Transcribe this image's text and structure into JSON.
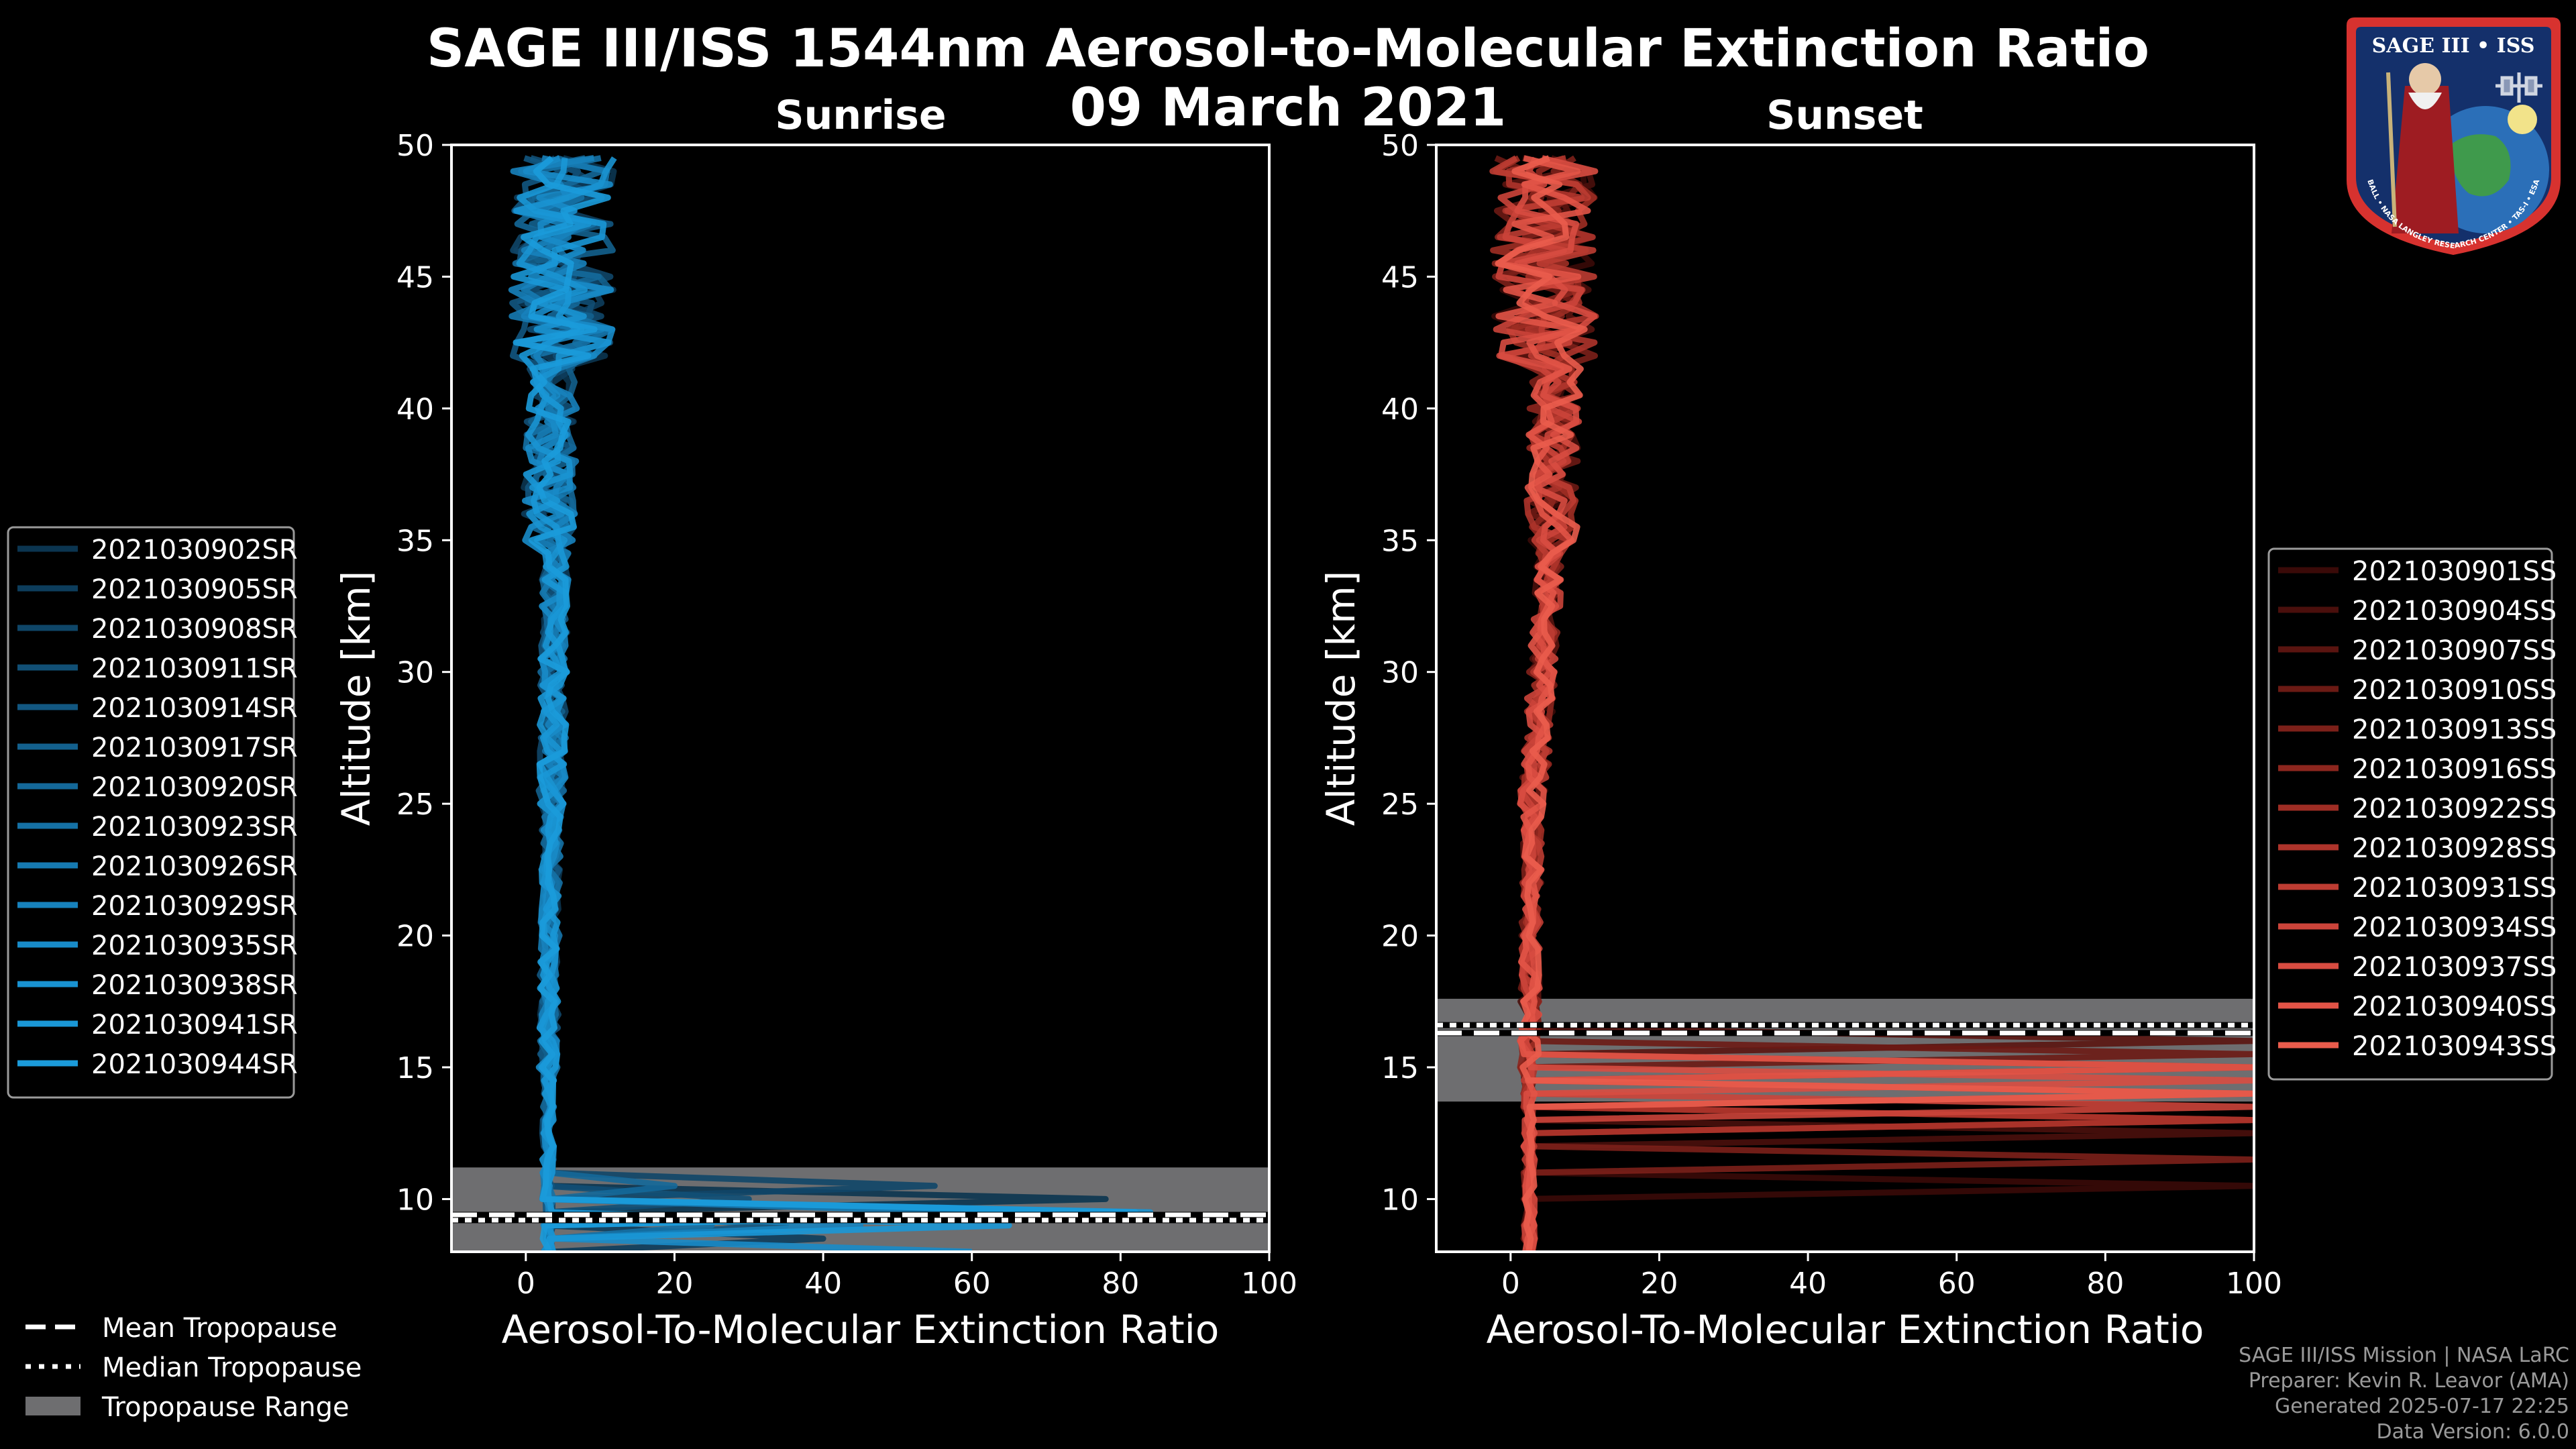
{
  "header": {
    "title_line1": "SAGE III/ISS 1544nm Aerosol-to-Molecular Extinction Ratio",
    "title_line2": "09 March 2021"
  },
  "footer": {
    "line1": "SAGE III/ISS Mission | NASA LaRC",
    "line2": "Preparer: Kevin R. Leavor (AMA)",
    "line3": "Generated 2025-07-17 22:25",
    "line4": "Data Version: 6.0.0"
  },
  "logo": {
    "title": "SAGE III • ISS",
    "ring_text": "BALL • NASA LANGLEY RESEARCH CENTER • TAS-I • ESA"
  },
  "colors": {
    "background": "#000000",
    "sunrise_accent": "#1a9ad8",
    "sunset_accent": "#e8584a",
    "tropopause_range": "#6e6e70"
  },
  "tropopause_legend": {
    "mean": "Mean Tropopause",
    "median": "Median Tropopause",
    "range": "Tropopause Range"
  },
  "chart_data": [
    {
      "type": "line",
      "panel": "sunrise",
      "title": "Sunrise",
      "xlabel": "Aerosol-To-Molecular Extinction Ratio",
      "ylabel": "Altitude [km]",
      "xlim": [
        -10,
        100
      ],
      "ylim": [
        8,
        50
      ],
      "xticks": [
        0,
        20,
        40,
        60,
        80,
        100
      ],
      "yticks": [
        10,
        15,
        20,
        25,
        30,
        35,
        40,
        45,
        50
      ],
      "legend_position": "left",
      "tropopause": {
        "range": [
          8.0,
          11.2
        ],
        "mean": 9.4,
        "median": 9.2
      },
      "series": [
        {
          "name": "2021030902SR",
          "color": "#0b3550",
          "spike": {
            "alt": 10.0,
            "value": 78
          }
        },
        {
          "name": "2021030905SR",
          "color": "#0d3d5c",
          "spike": {
            "alt": 8.6,
            "value": 40
          }
        },
        {
          "name": "2021030908SR",
          "color": "#0f4668",
          "spike": {
            "alt": 10.3,
            "value": 55
          }
        },
        {
          "name": "2021030911SR",
          "color": "#114f75",
          "spike": {
            "alt": 9.8,
            "value": 30
          }
        },
        {
          "name": "2021030914SR",
          "color": "#125781",
          "spike": {
            "alt": 9.0,
            "value": 35
          }
        },
        {
          "name": "2021030917SR",
          "color": "#13608d",
          "spike": {
            "alt": 9.6,
            "value": 70
          }
        },
        {
          "name": "2021030920SR",
          "color": "#146899",
          "spike": {
            "alt": 10.5,
            "value": 20
          }
        },
        {
          "name": "2021030923SR",
          "color": "#1571a5",
          "spike": {
            "alt": 8.9,
            "value": 25
          }
        },
        {
          "name": "2021030926SR",
          "color": "#167ab1",
          "spike": {
            "alt": 9.3,
            "value": 60
          }
        },
        {
          "name": "2021030929SR",
          "color": "#1782bd",
          "spike": {
            "alt": 9.1,
            "value": 45
          }
        },
        {
          "name": "2021030935SR",
          "color": "#188bc8",
          "spike": {
            "alt": 8.2,
            "value": 60
          }
        },
        {
          "name": "2021030938SR",
          "color": "#1993d2",
          "spike": {
            "alt": 9.5,
            "value": 84
          }
        },
        {
          "name": "2021030941SR",
          "color": "#1a97d6",
          "spike": {
            "alt": 8.8,
            "value": 65
          }
        },
        {
          "name": "2021030944SR",
          "color": "#1b9bda",
          "spike": {
            "alt": 9.4,
            "value": 82
          }
        }
      ]
    },
    {
      "type": "line",
      "panel": "sunset",
      "title": "Sunset",
      "xlabel": "Aerosol-To-Molecular Extinction Ratio",
      "ylabel": "Altitude [km]",
      "xlim": [
        -10,
        100
      ],
      "ylim": [
        8,
        50
      ],
      "xticks": [
        0,
        20,
        40,
        60,
        80,
        100
      ],
      "yticks": [
        10,
        15,
        20,
        25,
        30,
        35,
        40,
        45,
        50
      ],
      "legend_position": "right",
      "tropopause": {
        "range": [
          13.7,
          17.6
        ],
        "mean": 16.3,
        "median": 16.6
      },
      "series": [
        {
          "name": "2021030901SS",
          "color": "#3a0a08",
          "spike": {
            "alt": 10.4,
            "value": 100
          }
        },
        {
          "name": "2021030904SS",
          "color": "#4a0f0c",
          "spike": {
            "alt": 12.4,
            "value": 100
          }
        },
        {
          "name": "2021030907SS",
          "color": "#5a1410",
          "spike": {
            "alt": 16.2,
            "value": 100
          }
        },
        {
          "name": "2021030910SS",
          "color": "#6b1a14",
          "spike": {
            "alt": 15.6,
            "value": 100
          }
        },
        {
          "name": "2021030913SS",
          "color": "#7c2019",
          "spike": {
            "alt": 11.6,
            "value": 100
          }
        },
        {
          "name": "2021030916SS",
          "color": "#8d261e",
          "spike": {
            "alt": 13.1,
            "value": 100
          }
        },
        {
          "name": "2021030922SS",
          "color": "#9e2d24",
          "spike": {
            "alt": 14.8,
            "value": 100
          }
        },
        {
          "name": "2021030928SS",
          "color": "#ae342b",
          "spike": {
            "alt": 12.9,
            "value": 100
          }
        },
        {
          "name": "2021030931SS",
          "color": "#bd3c32",
          "spike": {
            "alt": 14.2,
            "value": 100
          }
        },
        {
          "name": "2021030934SS",
          "color": "#cb443a",
          "spike": {
            "alt": 13.6,
            "value": 100
          }
        },
        {
          "name": "2021030937SS",
          "color": "#d84c41",
          "spike": {
            "alt": 14.6,
            "value": 100
          }
        },
        {
          "name": "2021030940SS",
          "color": "#e25447",
          "spike": {
            "alt": 15.1,
            "value": 100
          }
        },
        {
          "name": "2021030943SS",
          "color": "#ea5c4c",
          "spike": {
            "alt": 13.9,
            "value": 100
          }
        }
      ]
    }
  ]
}
